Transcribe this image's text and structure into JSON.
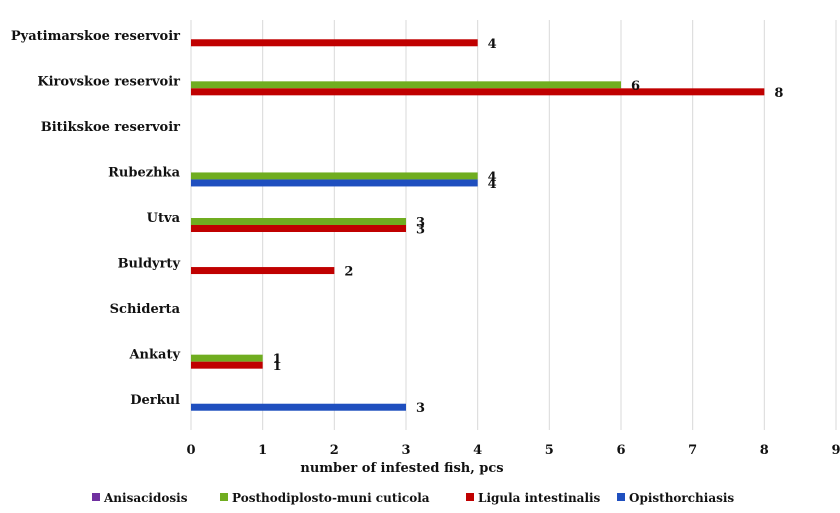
{
  "chart_data": {
    "type": "bar",
    "orientation": "horizontal",
    "title": "",
    "xlabel": "number of infested fish, pcs",
    "ylabel": "",
    "xlim": [
      0,
      9
    ],
    "xticks": [
      0,
      1,
      2,
      3,
      4,
      5,
      6,
      7,
      8,
      9
    ],
    "grid": true,
    "legend_position": "bottom",
    "categories": [
      "Pyatimarskoe  reservoir",
      "Kirovskoe reservoir",
      "Bitikskoe reservoir",
      "Rubezhka",
      "Utva",
      "Buldyrty",
      "Schiderta",
      "Ankaty",
      "Derkul"
    ],
    "series": [
      {
        "name": "Anisacidosis",
        "color": "#7030a0",
        "values": [
          null,
          null,
          null,
          null,
          null,
          null,
          null,
          null,
          null
        ]
      },
      {
        "name": "Posthodiplosto-muni cuticola",
        "color": "#70ad20",
        "values": [
          null,
          6,
          null,
          4,
          3,
          null,
          null,
          1,
          null
        ]
      },
      {
        "name": "Ligula intestinalis",
        "color": "#c00000",
        "values": [
          4,
          8,
          null,
          null,
          3,
          2,
          null,
          1,
          null
        ]
      },
      {
        "name": "Opisthorchiasis",
        "color": "#1f4fbf",
        "values": [
          null,
          null,
          null,
          4,
          null,
          null,
          null,
          null,
          3
        ]
      }
    ]
  }
}
